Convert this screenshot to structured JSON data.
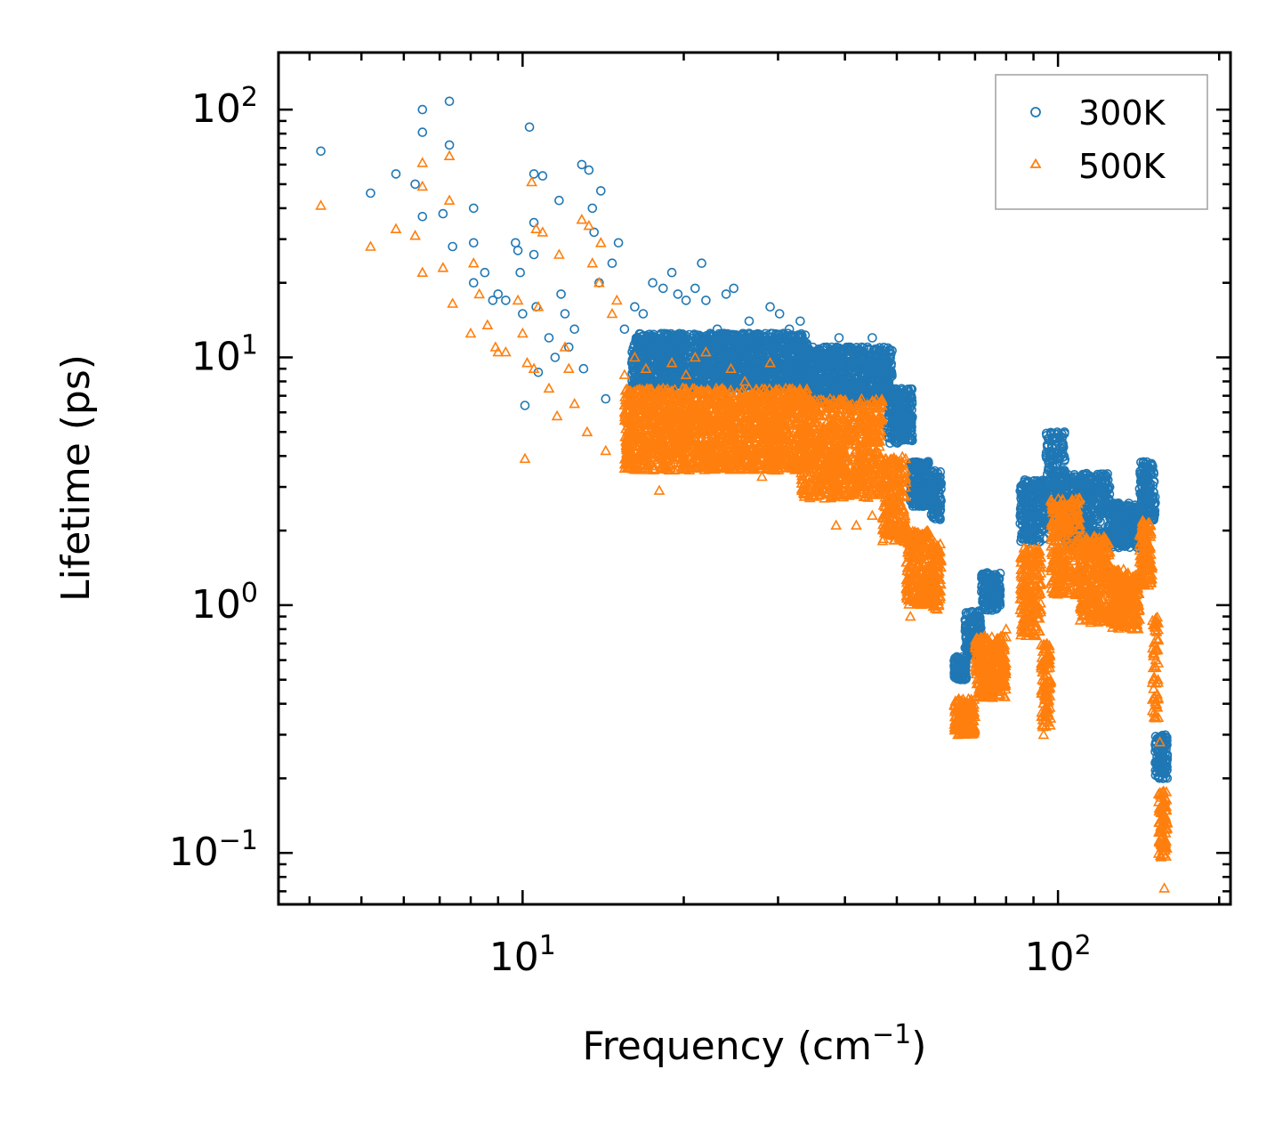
{
  "chart_data": {
    "type": "scatter",
    "title": "",
    "xlabel": "Frequency (cm",
    "xlabel_sup": "−1",
    "xlabel_tail": ")",
    "ylabel": "Lifetime (ps)",
    "xscale": "log",
    "yscale": "log",
    "xlim": [
      3.5,
      210
    ],
    "ylim": [
      0.062,
      170
    ],
    "x_ticks": [
      {
        "value": 10,
        "base": "10",
        "exp": "1"
      },
      {
        "value": 100,
        "base": "10",
        "exp": "2"
      }
    ],
    "y_ticks": [
      {
        "value": 0.1,
        "base": "10",
        "exp": "−1"
      },
      {
        "value": 1,
        "base": "10",
        "exp": "0"
      },
      {
        "value": 10,
        "base": "10",
        "exp": "1"
      },
      {
        "value": 100,
        "base": "10",
        "exp": "2"
      }
    ],
    "legend_position": "top-right",
    "series": [
      {
        "name": "300K",
        "marker": "circle",
        "color": "#1f77b4",
        "points": [
          [
            4.2,
            68
          ],
          [
            5.2,
            46
          ],
          [
            5.8,
            55
          ],
          [
            6.3,
            50
          ],
          [
            6.5,
            100
          ],
          [
            6.5,
            81
          ],
          [
            6.5,
            37
          ],
          [
            7.1,
            38
          ],
          [
            7.3,
            108
          ],
          [
            7.3,
            72
          ],
          [
            7.4,
            28
          ],
          [
            8.1,
            40
          ],
          [
            8.1,
            29
          ],
          [
            8.1,
            20
          ],
          [
            8.5,
            22
          ],
          [
            8.8,
            17
          ],
          [
            9.0,
            18
          ],
          [
            9.3,
            17
          ],
          [
            9.7,
            29
          ],
          [
            9.8,
            27
          ],
          [
            9.9,
            22
          ],
          [
            10.0,
            15
          ],
          [
            10.1,
            6.4
          ],
          [
            10.3,
            85
          ],
          [
            10.5,
            55
          ],
          [
            10.5,
            35
          ],
          [
            10.5,
            26
          ],
          [
            10.6,
            16
          ],
          [
            10.7,
            8.7
          ],
          [
            10.9,
            54
          ],
          [
            11.2,
            12
          ],
          [
            11.5,
            10
          ],
          [
            11.7,
            43
          ],
          [
            11.8,
            18
          ],
          [
            12.0,
            15
          ],
          [
            12.2,
            11
          ],
          [
            12.5,
            13
          ],
          [
            12.9,
            60
          ],
          [
            13.0,
            9
          ],
          [
            13.3,
            57
          ],
          [
            13.5,
            40
          ],
          [
            13.6,
            32
          ],
          [
            13.9,
            20
          ],
          [
            14.0,
            47
          ],
          [
            14.3,
            6.8
          ],
          [
            14.7,
            24
          ],
          [
            15.1,
            29
          ],
          [
            15.5,
            13
          ],
          [
            16.2,
            16
          ],
          [
            16.8,
            15
          ],
          [
            17.5,
            20
          ],
          [
            18.3,
            19
          ],
          [
            19.0,
            22
          ],
          [
            19.5,
            18
          ],
          [
            20.2,
            17
          ],
          [
            21.0,
            19
          ],
          [
            21.6,
            24
          ],
          [
            22.0,
            17
          ],
          [
            23.1,
            13
          ],
          [
            24.0,
            18
          ],
          [
            24.8,
            19
          ],
          [
            25.5,
            11
          ],
          [
            26.5,
            14
          ],
          [
            27.8,
            12
          ],
          [
            29.0,
            16
          ],
          [
            30.2,
            15
          ],
          [
            31.5,
            13
          ],
          [
            33.0,
            14
          ],
          [
            35.0,
            9.5
          ],
          [
            37.0,
            11
          ],
          [
            39.0,
            12
          ],
          [
            41.0,
            10
          ],
          [
            43.0,
            11
          ],
          [
            45.0,
            12
          ],
          [
            48.0,
            9
          ]
        ],
        "bands": [
          {
            "x0": 16.0,
            "x1": 34.0,
            "y0": 7.5,
            "y1": 12.5
          },
          {
            "x0": 33.0,
            "x1": 49.0,
            "y0": 6.5,
            "y1": 11.0
          },
          {
            "x0": 48.0,
            "x1": 53.5,
            "y0": 4.5,
            "y1": 7.5
          },
          {
            "x0": 53.0,
            "x1": 58.0,
            "y0": 2.5,
            "y1": 3.8
          },
          {
            "x0": 58.0,
            "x1": 60.5,
            "y0": 2.2,
            "y1": 3.5
          },
          {
            "x0": 64.0,
            "x1": 67.5,
            "y0": 0.5,
            "y1": 0.62
          },
          {
            "x0": 67.0,
            "x1": 72.0,
            "y0": 0.62,
            "y1": 0.95
          },
          {
            "x0": 72.0,
            "x1": 78.0,
            "y0": 0.95,
            "y1": 1.35
          },
          {
            "x0": 85.0,
            "x1": 95.0,
            "y0": 1.8,
            "y1": 3.2
          },
          {
            "x0": 95.0,
            "x1": 103.0,
            "y0": 2.2,
            "y1": 5.0
          },
          {
            "x0": 103.0,
            "x1": 125.0,
            "y0": 1.7,
            "y1": 3.4
          },
          {
            "x0": 125.0,
            "x1": 142.0,
            "y0": 1.7,
            "y1": 2.6
          },
          {
            "x0": 142.0,
            "x1": 152.0,
            "y0": 2.2,
            "y1": 3.8
          },
          {
            "x0": 152.0,
            "x1": 160.0,
            "y0": 0.2,
            "y1": 0.3
          }
        ]
      },
      {
        "name": "500K",
        "marker": "triangle",
        "color": "#ff7f0e",
        "points": [
          [
            4.2,
            41
          ],
          [
            5.2,
            28
          ],
          [
            5.8,
            33
          ],
          [
            6.3,
            31
          ],
          [
            6.5,
            61
          ],
          [
            6.5,
            49
          ],
          [
            6.5,
            22
          ],
          [
            7.1,
            23
          ],
          [
            7.3,
            65
          ],
          [
            7.3,
            43
          ],
          [
            7.4,
            16.5
          ],
          [
            8.0,
            12.5
          ],
          [
            8.1,
            24
          ],
          [
            8.3,
            18
          ],
          [
            8.6,
            13.5
          ],
          [
            8.9,
            11
          ],
          [
            9.0,
            10.5
          ],
          [
            9.3,
            10.5
          ],
          [
            9.8,
            17
          ],
          [
            10.0,
            12.5
          ],
          [
            10.1,
            3.9
          ],
          [
            10.2,
            9.5
          ],
          [
            10.4,
            51
          ],
          [
            10.5,
            9
          ],
          [
            10.6,
            33
          ],
          [
            10.7,
            16
          ],
          [
            10.9,
            32
          ],
          [
            11.2,
            7.5
          ],
          [
            11.6,
            5.8
          ],
          [
            11.7,
            26
          ],
          [
            12.0,
            11
          ],
          [
            12.2,
            9
          ],
          [
            12.5,
            6.5
          ],
          [
            12.9,
            36
          ],
          [
            13.2,
            5
          ],
          [
            13.3,
            34
          ],
          [
            13.5,
            24
          ],
          [
            13.9,
            20
          ],
          [
            14.0,
            29
          ],
          [
            14.3,
            4.2
          ],
          [
            14.7,
            15
          ],
          [
            15.0,
            17
          ],
          [
            15.5,
            8.5
          ],
          [
            16.2,
            10
          ],
          [
            17.0,
            9
          ],
          [
            18.0,
            2.9
          ],
          [
            19.0,
            9.5
          ],
          [
            20.2,
            8.5
          ],
          [
            21.0,
            10
          ],
          [
            22.0,
            10.5
          ],
          [
            23.0,
            7.5
          ],
          [
            24.5,
            9
          ],
          [
            26.0,
            8
          ],
          [
            28.0,
            3.3
          ],
          [
            29.0,
            9.5
          ],
          [
            31.0,
            7.5
          ],
          [
            33.0,
            6.5
          ],
          [
            36.0,
            2.8
          ],
          [
            38.5,
            2.1
          ],
          [
            42.0,
            2.1
          ],
          [
            45.0,
            2.3
          ],
          [
            53.0,
            0.9
          ],
          [
            65.0,
            0.3
          ],
          [
            80.0,
            0.8
          ],
          [
            94.0,
            0.3
          ],
          [
            155.0,
            0.28
          ],
          [
            158.0,
            0.072
          ]
        ],
        "bands": [
          {
            "x0": 15.5,
            "x1": 34.0,
            "y0": 3.5,
            "y1": 7.5
          },
          {
            "x0": 33.0,
            "x1": 47.0,
            "y0": 2.7,
            "y1": 6.8
          },
          {
            "x0": 47.0,
            "x1": 52.0,
            "y0": 1.8,
            "y1": 4.0
          },
          {
            "x0": 52.0,
            "x1": 58.0,
            "y0": 1.0,
            "y1": 2.0
          },
          {
            "x0": 58.0,
            "x1": 60.5,
            "y0": 0.95,
            "y1": 1.8
          },
          {
            "x0": 64.0,
            "x1": 70.0,
            "y0": 0.3,
            "y1": 0.42
          },
          {
            "x0": 70.0,
            "x1": 80.0,
            "y0": 0.42,
            "y1": 0.75
          },
          {
            "x0": 85.0,
            "x1": 93.0,
            "y0": 0.75,
            "y1": 1.7
          },
          {
            "x0": 93.0,
            "x1": 97.0,
            "y0": 0.32,
            "y1": 0.7
          },
          {
            "x0": 97.0,
            "x1": 110.0,
            "y0": 1.1,
            "y1": 2.7
          },
          {
            "x0": 110.0,
            "x1": 125.0,
            "y0": 0.85,
            "y1": 1.9
          },
          {
            "x0": 125.0,
            "x1": 142.0,
            "y0": 0.8,
            "y1": 1.4
          },
          {
            "x0": 142.0,
            "x1": 150.0,
            "y0": 1.2,
            "y1": 2.2
          },
          {
            "x0": 150.0,
            "x1": 154.0,
            "y0": 0.35,
            "y1": 0.9
          },
          {
            "x0": 154.0,
            "x1": 160.0,
            "y0": 0.095,
            "y1": 0.18
          }
        ]
      }
    ]
  }
}
